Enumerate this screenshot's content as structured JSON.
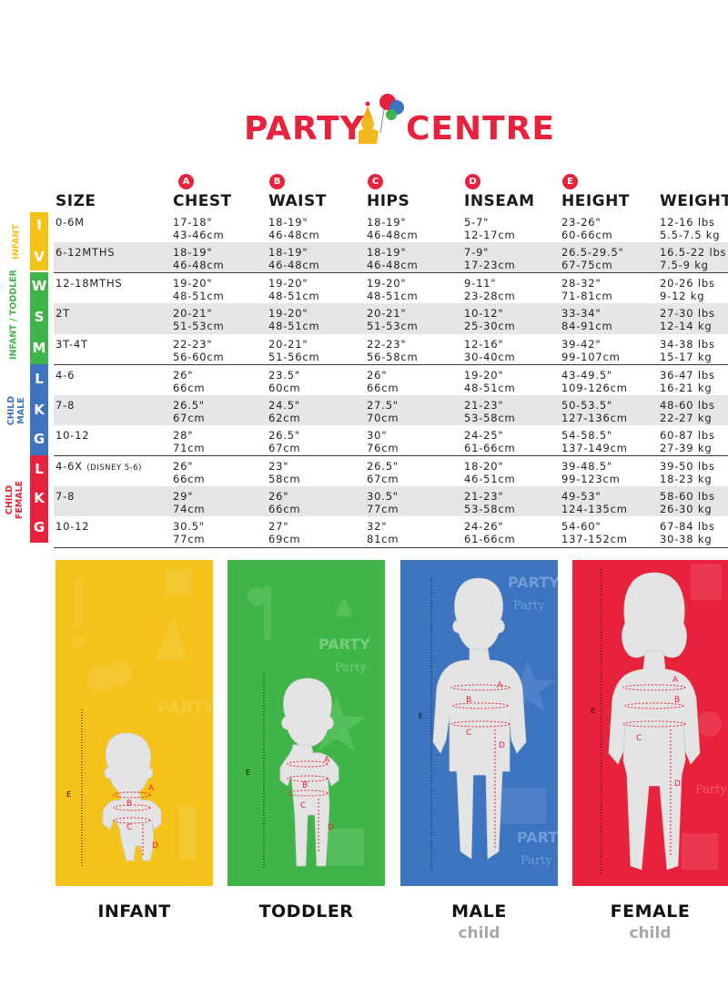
{
  "brand": {
    "left": "PARTY",
    "right": "CENTRE"
  },
  "columns": [
    {
      "letter": "",
      "label": "SIZE"
    },
    {
      "letter": "A",
      "label": "CHEST"
    },
    {
      "letter": "B",
      "label": "WAIST"
    },
    {
      "letter": "C",
      "label": "HIPS"
    },
    {
      "letter": "D",
      "label": "INSEAM"
    },
    {
      "letter": "E",
      "label": "HEIGHT"
    },
    {
      "letter": "",
      "label": "WEIGHT"
    }
  ],
  "groups": [
    {
      "label": "INFANT",
      "color": "#f5c21a"
    },
    {
      "label": "INFANT / TODDLER",
      "color": "#3fb549"
    },
    {
      "label": "CHILD MALE",
      "color": "#3d74c0"
    },
    {
      "label": "CHILD FEMALE",
      "color": "#e8213c"
    }
  ],
  "rows": [
    {
      "letter": "I",
      "size": "0-6M",
      "note": "",
      "chest": [
        "17-18\"",
        "43-46cm"
      ],
      "waist": [
        "18-19\"",
        "46-48cm"
      ],
      "hips": [
        "18-19\"",
        "46-48cm"
      ],
      "inseam": [
        "5-7\"",
        "12-17cm"
      ],
      "height": [
        "23-26\"",
        "60-66cm"
      ],
      "weight": [
        "12-16 lbs",
        "5.5-7.5 kg"
      ]
    },
    {
      "letter": "V",
      "size": "6-12MTHS",
      "note": "",
      "chest": [
        "18-19\"",
        "46-48cm"
      ],
      "waist": [
        "18-19\"",
        "46-48cm"
      ],
      "hips": [
        "18-19\"",
        "46-48cm"
      ],
      "inseam": [
        "7-9\"",
        "17-23cm"
      ],
      "height": [
        "26.5-29.5\"",
        "67-75cm"
      ],
      "weight": [
        "16.5-22 lbs",
        "7.5-9 kg"
      ]
    },
    {
      "letter": "W",
      "size": "12-18MTHS",
      "note": "",
      "chest": [
        "19-20\"",
        "48-51cm"
      ],
      "waist": [
        "19-20\"",
        "48-51cm"
      ],
      "hips": [
        "19-20\"",
        "48-51cm"
      ],
      "inseam": [
        "9-11\"",
        "23-28cm"
      ],
      "height": [
        "28-32\"",
        "71-81cm"
      ],
      "weight": [
        "20-26 lbs",
        "9-12 kg"
      ]
    },
    {
      "letter": "S",
      "size": "2T",
      "note": "",
      "chest": [
        "20-21\"",
        "51-53cm"
      ],
      "waist": [
        "19-20\"",
        "48-51cm"
      ],
      "hips": [
        "20-21\"",
        "51-53cm"
      ],
      "inseam": [
        "10-12\"",
        "25-30cm"
      ],
      "height": [
        "33-34\"",
        "84-91cm"
      ],
      "weight": [
        "27-30 lbs",
        "12-14 kg"
      ]
    },
    {
      "letter": "M",
      "size": "3T-4T",
      "note": "",
      "chest": [
        "22-23\"",
        "56-60cm"
      ],
      "waist": [
        "20-21\"",
        "51-56cm"
      ],
      "hips": [
        "22-23\"",
        "56-58cm"
      ],
      "inseam": [
        "12-16\"",
        "30-40cm"
      ],
      "height": [
        "39-42\"",
        "99-107cm"
      ],
      "weight": [
        "34-38 lbs",
        "15-17 kg"
      ]
    },
    {
      "letter": "L",
      "size": "4-6",
      "note": "",
      "chest": [
        "26\"",
        "66cm"
      ],
      "waist": [
        "23.5\"",
        "60cm"
      ],
      "hips": [
        "26\"",
        "66cm"
      ],
      "inseam": [
        "19-20\"",
        "48-51cm"
      ],
      "height": [
        "43-49.5\"",
        "109-126cm"
      ],
      "weight": [
        "36-47 lbs",
        "16-21 kg"
      ]
    },
    {
      "letter": "K",
      "size": "7-8",
      "note": "",
      "chest": [
        "26.5\"",
        "67cm"
      ],
      "waist": [
        "24.5\"",
        "62cm"
      ],
      "hips": [
        "27.5\"",
        "70cm"
      ],
      "inseam": [
        "21-23\"",
        "53-58cm"
      ],
      "height": [
        "50-53.5\"",
        "127-136cm"
      ],
      "weight": [
        "48-60 lbs",
        "22-27 kg"
      ]
    },
    {
      "letter": "G",
      "size": "10-12",
      "note": "",
      "chest": [
        "28\"",
        "71cm"
      ],
      "waist": [
        "26.5\"",
        "67cm"
      ],
      "hips": [
        "30\"",
        "76cm"
      ],
      "inseam": [
        "24-25\"",
        "61-66cm"
      ],
      "height": [
        "54-58.5\"",
        "137-149cm"
      ],
      "weight": [
        "60-87 lbs",
        "27-39 kg"
      ]
    },
    {
      "letter": "L",
      "size": "4-6X",
      "note": "(DISNEY 5-6)",
      "chest": [
        "26\"",
        "66cm"
      ],
      "waist": [
        "23\"",
        "58cm"
      ],
      "hips": [
        "26.5\"",
        "67cm"
      ],
      "inseam": [
        "18-20\"",
        "46-51cm"
      ],
      "height": [
        "39-48.5\"",
        "99-123cm"
      ],
      "weight": [
        "39-50 lbs",
        "18-23 kg"
      ]
    },
    {
      "letter": "K",
      "size": "7-8",
      "note": "",
      "chest": [
        "29\"",
        "74cm"
      ],
      "waist": [
        "26\"",
        "66cm"
      ],
      "hips": [
        "30.5\"",
        "77cm"
      ],
      "inseam": [
        "21-23\"",
        "53-58cm"
      ],
      "height": [
        "49-53\"",
        "124-135cm"
      ],
      "weight": [
        "58-60 lbs",
        "26-30 kg"
      ]
    },
    {
      "letter": "G",
      "size": "10-12",
      "note": "",
      "chest": [
        "30.5\"",
        "77cm"
      ],
      "waist": [
        "27\"",
        "69cm"
      ],
      "hips": [
        "32\"",
        "81cm"
      ],
      "inseam": [
        "24-26\"",
        "61-66cm"
      ],
      "height": [
        "54-60\"",
        "137-152cm"
      ],
      "weight": [
        "67-84 lbs",
        "30-38 kg"
      ]
    }
  ],
  "panels": [
    {
      "label": "INFANT",
      "sub": "",
      "color": "#f5c21a"
    },
    {
      "label": "TODDLER",
      "sub": "",
      "color": "#3fb549"
    },
    {
      "label": "MALE",
      "sub": "child",
      "color": "#3d74c0"
    },
    {
      "label": "FEMALE",
      "sub": "child",
      "color": "#e8213c"
    }
  ],
  "bg_words": {
    "party": "PARTY",
    "party_small": "Party"
  },
  "measure_letters": {
    "a": "A",
    "b": "B",
    "c": "C",
    "d": "D",
    "e": "E"
  }
}
